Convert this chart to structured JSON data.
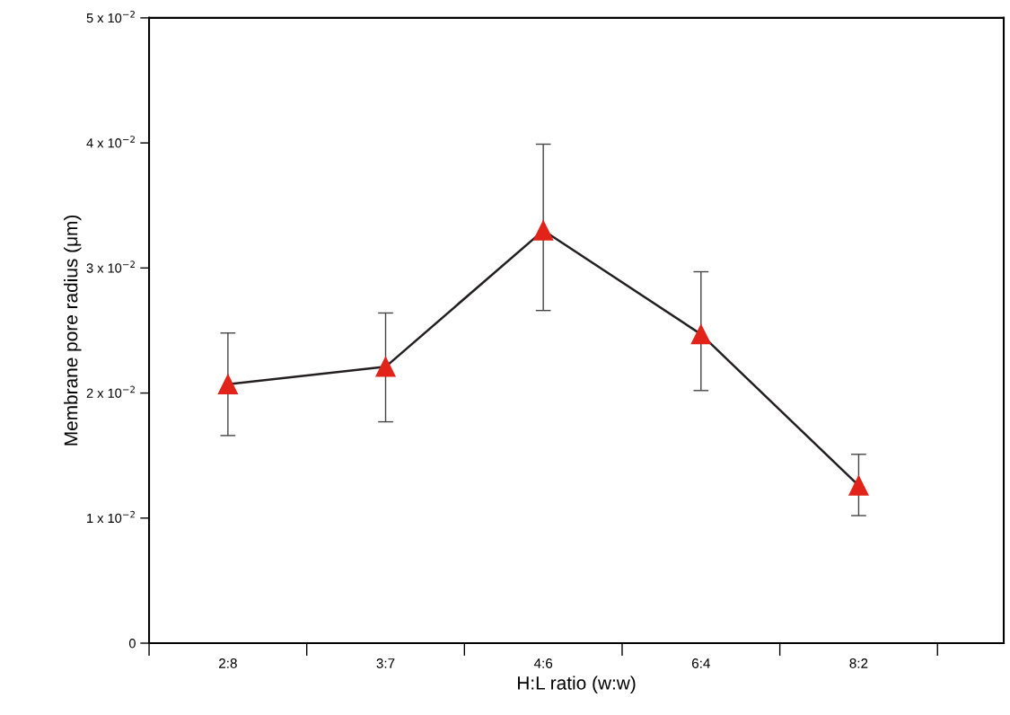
{
  "chart_data": {
    "type": "line",
    "xlabel": "H:L ratio (w:w)",
    "ylabel": "Membrane pore radius (μm)",
    "categories": [
      "2:8",
      "3:7",
      "4:6",
      "6:4",
      "8:2"
    ],
    "series": [
      {
        "color": "#231f20",
        "colors": [
          "#e2231a",
          "#e2231a",
          "#e2231a",
          "#e2231a",
          "#e2231a"
        ],
        "values": [
          0.0207,
          0.0221,
          0.033,
          0.0247,
          0.0126
        ],
        "errors": [
          [
            0.0166,
            0.0248
          ],
          [
            0.0177,
            0.0264
          ],
          [
            0.0266,
            0.0399
          ],
          [
            0.0202,
            0.0297
          ],
          [
            0.0102,
            0.0151
          ]
        ]
      }
    ],
    "ylim": [
      0,
      0.05
    ],
    "yticks": [
      {
        "value": 0,
        "label": "0"
      },
      {
        "value": 0.01,
        "label": "1 x 10$^{−2}$"
      },
      {
        "value": 0.02,
        "label": "2 x 10$^{−2}$"
      },
      {
        "value": 0.03,
        "label": "3 x 10$^{−2}$"
      },
      {
        "value": 0.04,
        "label": "4 x 10$^{−2}$"
      },
      {
        "value": 0.05,
        "label": "5 x 10$^{−2}$"
      }
    ],
    "marker": "triangle",
    "grid": false,
    "legend": false
  }
}
